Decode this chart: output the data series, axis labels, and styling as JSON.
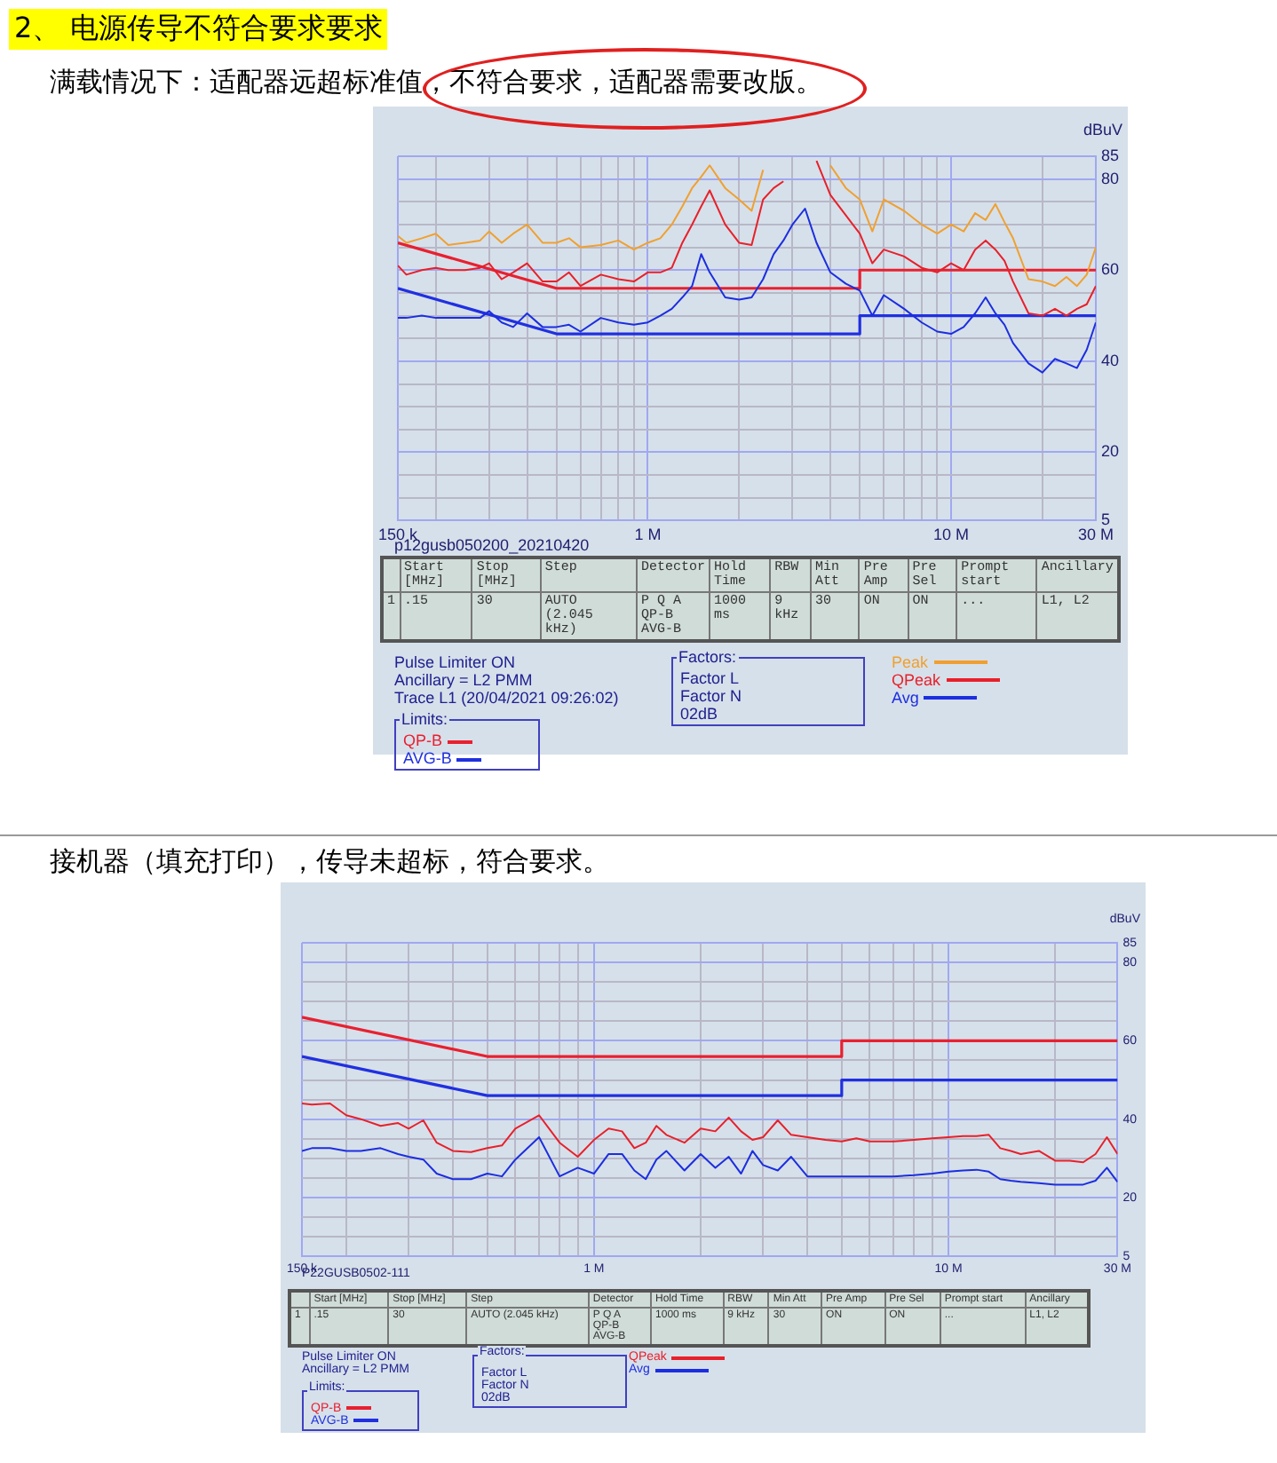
{
  "chart_data": [
    {
      "type": "line",
      "title": "2、 电源传导不符合要求要求",
      "subtitle": "满载情况下：适配器远超标准值，不符合要求，适配器需要改版。",
      "ylabel": "dBuV",
      "x": [
        0.15,
        0.16,
        0.18,
        0.2,
        0.22,
        0.25,
        0.28,
        0.3,
        0.33,
        0.36,
        0.4,
        0.45,
        0.5,
        0.55,
        0.6,
        0.7,
        0.8,
        0.9,
        1,
        1.1,
        1.2,
        1.3,
        1.4,
        1.5,
        1.6,
        1.8,
        2,
        2.2,
        2.4,
        2.6,
        2.8,
        3,
        3.3,
        3.6,
        4,
        4.5,
        5,
        5.5,
        6,
        7,
        8,
        9,
        10,
        11,
        12,
        13,
        14,
        15,
        16,
        18,
        20,
        22,
        24,
        26,
        28,
        30
      ],
      "series": [
        {
          "name": "Peak",
          "color": "#f0a030",
          "values": [
            67.5,
            66,
            67,
            68,
            65.5,
            66,
            66.5,
            68.5,
            66,
            68,
            70,
            66,
            66,
            67,
            65,
            65.5,
            66.5,
            64.5,
            66,
            67,
            70,
            74,
            78,
            80.5,
            83,
            78,
            75.5,
            73,
            82,
            null,
            null,
            null,
            null,
            null,
            83,
            78,
            75.5,
            68.5,
            75.5,
            73,
            70,
            68,
            70,
            68.5,
            72.5,
            71,
            74.5,
            70.5,
            67,
            58,
            57.5,
            56.5,
            58.5,
            56.5,
            59,
            65
          ]
        },
        {
          "name": "QPeak",
          "color": "#e8202a",
          "values": [
            61,
            59,
            60,
            60.5,
            60,
            60,
            60.5,
            61.5,
            58,
            59.5,
            61.5,
            57.5,
            57.5,
            59.5,
            56.5,
            59,
            58,
            57.5,
            59.5,
            59.5,
            60.5,
            66,
            70,
            74,
            77.5,
            70,
            66,
            65.5,
            75.5,
            78,
            79.5,
            null,
            null,
            84,
            76.5,
            72,
            68,
            61.5,
            64.5,
            63,
            60.5,
            59.5,
            61.5,
            60,
            64.5,
            66.5,
            64.5,
            62,
            57.5,
            50.5,
            50,
            51.5,
            50,
            51.5,
            52.5,
            56.5
          ]
        },
        {
          "name": "Avg",
          "color": "#1c2ee0",
          "values": [
            49.5,
            49.5,
            50,
            49.5,
            49.5,
            49.5,
            49.5,
            51,
            48.5,
            47.5,
            50.5,
            47.5,
            47.5,
            48,
            46.5,
            49.5,
            48.5,
            48,
            48.5,
            50,
            51.5,
            54,
            56.5,
            63.5,
            59.5,
            54,
            53.5,
            54,
            58,
            63.5,
            66.5,
            70,
            73.5,
            66,
            59.5,
            57,
            55.5,
            50,
            54.5,
            51.5,
            48.5,
            46.5,
            46,
            47.5,
            50.5,
            54,
            50.5,
            48,
            44,
            39.5,
            37.5,
            40.5,
            39.5,
            38.5,
            42.5,
            48.5
          ]
        },
        {
          "name": "QP-B",
          "color": "#e82030",
          "x": [
            0.15,
            0.5,
            5,
            5,
            30
          ],
          "values": [
            66,
            56,
            56,
            60,
            60
          ]
        },
        {
          "name": "AVG-B",
          "color": "#2030e0",
          "x": [
            0.15,
            0.5,
            5,
            5,
            30
          ],
          "values": [
            56,
            46,
            46,
            50,
            50
          ]
        }
      ],
      "log": "x",
      "xlim": [
        0.15,
        30
      ],
      "ylim": [
        5,
        85
      ],
      "xticks": [
        {
          "value": 0.15,
          "label": "150 k"
        },
        {
          "value": 0.2,
          "label": null
        },
        {
          "value": 0.3,
          "label": null
        },
        {
          "value": 0.4,
          "label": null
        },
        {
          "value": 0.5,
          "label": null
        },
        {
          "value": 0.6,
          "label": null
        },
        {
          "value": 0.7,
          "label": null
        },
        {
          "value": 0.8,
          "label": null
        },
        {
          "value": 0.9,
          "label": null
        },
        {
          "value": 1,
          "label": "1 M"
        },
        {
          "value": 2,
          "label": null
        },
        {
          "value": 3,
          "label": null
        },
        {
          "value": 4,
          "label": null
        },
        {
          "value": 5,
          "label": null
        },
        {
          "value": 6,
          "label": null
        },
        {
          "value": 7,
          "label": null
        },
        {
          "value": 8,
          "label": null
        },
        {
          "value": 9,
          "label": null
        },
        {
          "value": 10,
          "label": "10 M"
        },
        {
          "value": 20,
          "label": null
        },
        {
          "value": 30,
          "label": "30 M"
        }
      ],
      "yticks": [
        5,
        {
          "value": 10,
          "label": null
        },
        {
          "value": 15,
          "label": null
        },
        20,
        {
          "value": 25,
          "label": null
        },
        {
          "value": 30,
          "label": null
        },
        {
          "value": 35,
          "label": null
        },
        40,
        {
          "value": 45,
          "label": null
        },
        {
          "value": 50,
          "label": null
        },
        {
          "value": 55,
          "label": null
        },
        60,
        {
          "value": 65,
          "label": null
        },
        {
          "value": 70,
          "label": null
        },
        {
          "value": 75,
          "label": null
        },
        80,
        85
      ],
      "grid": true,
      "legend": "bottom",
      "annotations": [
        "p12gusb050200_20210420",
        "1",
        "Start [MHz]",
        "Stop [MHz]",
        "Step",
        "Detector",
        "Hold Time",
        "RBW",
        "Min Att",
        "Pre Amp",
        "Pre Sel",
        "Prompt start",
        "Ancillary",
        ".15",
        "30",
        "AUTO (2.045 kHz)",
        "P Q A\nQP-B\nAVG-B",
        "1000 ms",
        "9 kHz",
        "30",
        "ON",
        "ON",
        "...",
        "L1, L2",
        "Pulse Limiter ON\nAncillary = L2 PMM\nTrace L1 (20/04/2021 09:26:02)",
        "Limits:",
        "Factors:",
        "Factor L\nFactor N\n02dB"
      ]
    },
    {
      "type": "line",
      "subtitle": "接机器（填充打印），传导未超标，符合要求。",
      "ylabel": "dBuV",
      "x": [
        0.15,
        0.16,
        0.18,
        0.2,
        0.22,
        0.25,
        0.28,
        0.3,
        0.33,
        0.36,
        0.4,
        0.45,
        0.5,
        0.55,
        0.6,
        0.7,
        0.8,
        0.9,
        1,
        1.1,
        1.2,
        1.3,
        1.4,
        1.5,
        1.6,
        1.8,
        2,
        2.2,
        2.4,
        2.6,
        2.8,
        3,
        3.3,
        3.6,
        4,
        4.5,
        5,
        5.5,
        6,
        7,
        8,
        9,
        10,
        11,
        12,
        13,
        14,
        15,
        16,
        18,
        20,
        22,
        24,
        26,
        28,
        30
      ],
      "series": [
        {
          "name": "QPeak",
          "color": "#e8202a",
          "values": [
            44,
            43.7,
            44,
            41,
            40,
            38.3,
            39,
            37.6,
            39.7,
            34,
            31.9,
            31.6,
            32.6,
            33.3,
            37.6,
            41,
            34,
            30.4,
            34.7,
            37.6,
            36.9,
            32.6,
            34,
            38.3,
            36,
            34,
            37.6,
            36.9,
            40.4,
            36.9,
            34.7,
            35.4,
            39.7,
            36,
            35.4,
            34.7,
            34.3,
            35.1,
            34.3,
            34.3,
            34.7,
            35.1,
            35.4,
            35.7,
            35.7,
            36,
            32.6,
            31.9,
            31.1,
            31.9,
            29.4,
            29.4,
            29,
            31.1,
            35.4,
            31.1
          ]
        },
        {
          "name": "Avg",
          "color": "#1c2ee0",
          "values": [
            31.9,
            32.6,
            32.6,
            31.9,
            31.9,
            32.6,
            31.1,
            30.4,
            29.7,
            26.1,
            24.7,
            24.7,
            26.1,
            25.4,
            29.7,
            35.4,
            25.4,
            27.6,
            26.1,
            31.1,
            31.1,
            26.9,
            24.7,
            29.7,
            31.9,
            26.9,
            31.1,
            27.6,
            30.4,
            26.1,
            31.9,
            28.3,
            26.9,
            30.4,
            25.4,
            25.4,
            25.4,
            25.4,
            25.4,
            25.4,
            25.7,
            26.1,
            26.6,
            26.9,
            27.1,
            26.6,
            24.7,
            24.3,
            24,
            23.7,
            23.3,
            23.3,
            23.3,
            24.3,
            27.6,
            24
          ]
        },
        {
          "name": "QP-B",
          "color": "#e82030",
          "x": [
            0.15,
            0.5,
            5,
            5,
            30
          ],
          "values": [
            66,
            56,
            56,
            60,
            60
          ]
        },
        {
          "name": "AVG-B",
          "color": "#2030e0",
          "x": [
            0.15,
            0.5,
            5,
            5,
            30
          ],
          "values": [
            56,
            46,
            46,
            50,
            50
          ]
        }
      ],
      "log": "x",
      "xlim": [
        0.15,
        30
      ],
      "ylim": [
        5,
        85
      ],
      "xticks": [
        {
          "value": 0.15,
          "label": "150 k"
        },
        {
          "value": 0.2,
          "label": null
        },
        {
          "value": 0.3,
          "label": null
        },
        {
          "value": 0.4,
          "label": null
        },
        {
          "value": 0.5,
          "label": null
        },
        {
          "value": 0.6,
          "label": null
        },
        {
          "value": 0.7,
          "label": null
        },
        {
          "value": 0.8,
          "label": null
        },
        {
          "value": 0.9,
          "label": null
        },
        {
          "value": 1,
          "label": "1 M"
        },
        {
          "value": 2,
          "label": null
        },
        {
          "value": 3,
          "label": null
        },
        {
          "value": 4,
          "label": null
        },
        {
          "value": 5,
          "label": null
        },
        {
          "value": 6,
          "label": null
        },
        {
          "value": 7,
          "label": null
        },
        {
          "value": 8,
          "label": null
        },
        {
          "value": 9,
          "label": null
        },
        {
          "value": 10,
          "label": "10 M"
        },
        {
          "value": 20,
          "label": null
        },
        {
          "value": 30,
          "label": "30 M"
        }
      ],
      "yticks": [
        5,
        {
          "value": 10,
          "label": null
        },
        {
          "value": 15,
          "label": null
        },
        20,
        {
          "value": 25,
          "label": null
        },
        {
          "value": 30,
          "label": null
        },
        {
          "value": 35,
          "label": null
        },
        40,
        {
          "value": 45,
          "label": null
        },
        {
          "value": 50,
          "label": null
        },
        {
          "value": 55,
          "label": null
        },
        60,
        {
          "value": 65,
          "label": null
        },
        {
          "value": 70,
          "label": null
        },
        {
          "value": 75,
          "label": null
        },
        80,
        85
      ],
      "grid": true,
      "legend": "bottom",
      "annotations": [
        "P22GUSB0502-111",
        "1",
        "Start [MHz]",
        "Stop [MHz]",
        "Step",
        "Detector",
        "Hold Time",
        "RBW",
        "Min Att",
        "Pre Amp",
        "Pre Sel",
        "Prompt start",
        "Ancillary",
        ".15",
        "30",
        "AUTO (2.045 kHz)",
        "P Q A\nQP-B\nAVG-B",
        "1000 ms",
        "9 kHz",
        "30",
        "ON",
        "ON",
        "...",
        "L1, L2",
        "Pulse Limiter ON\nAncillary = L2 PMM",
        "Limits:",
        "Factors:",
        "Factor L\nFactor N\n02dB"
      ]
    }
  ]
}
